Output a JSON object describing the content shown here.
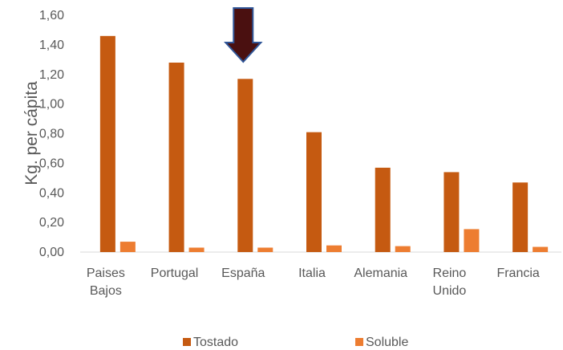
{
  "chart_data": {
    "type": "bar",
    "ylabel": "Kg. per cápita",
    "ylim": [
      0,
      1.6
    ],
    "yticks": [
      "0,00",
      "0,20",
      "0,40",
      "0,60",
      "0,80",
      "1,00",
      "1,20",
      "1,40",
      "1,60"
    ],
    "categories": [
      [
        "Paises",
        "Bajos"
      ],
      [
        "Portugal"
      ],
      [
        "España"
      ],
      [
        "Italia"
      ],
      [
        "Alemania"
      ],
      [
        "Reino",
        "Unido"
      ],
      [
        "Francia"
      ]
    ],
    "series": [
      {
        "name": "Tostado",
        "color": "#C55A11",
        "values": [
          1.46,
          1.28,
          1.17,
          0.81,
          0.57,
          0.54,
          0.47
        ]
      },
      {
        "name": "Soluble",
        "color": "#ED7D31",
        "values": [
          0.07,
          0.03,
          0.03,
          0.045,
          0.04,
          0.155,
          0.035
        ]
      }
    ],
    "grid": false,
    "legend": "bottom",
    "annotation": {
      "type": "arrow-down",
      "target_category": "España",
      "color": "#4A1010",
      "outline": "#2F5597"
    }
  }
}
